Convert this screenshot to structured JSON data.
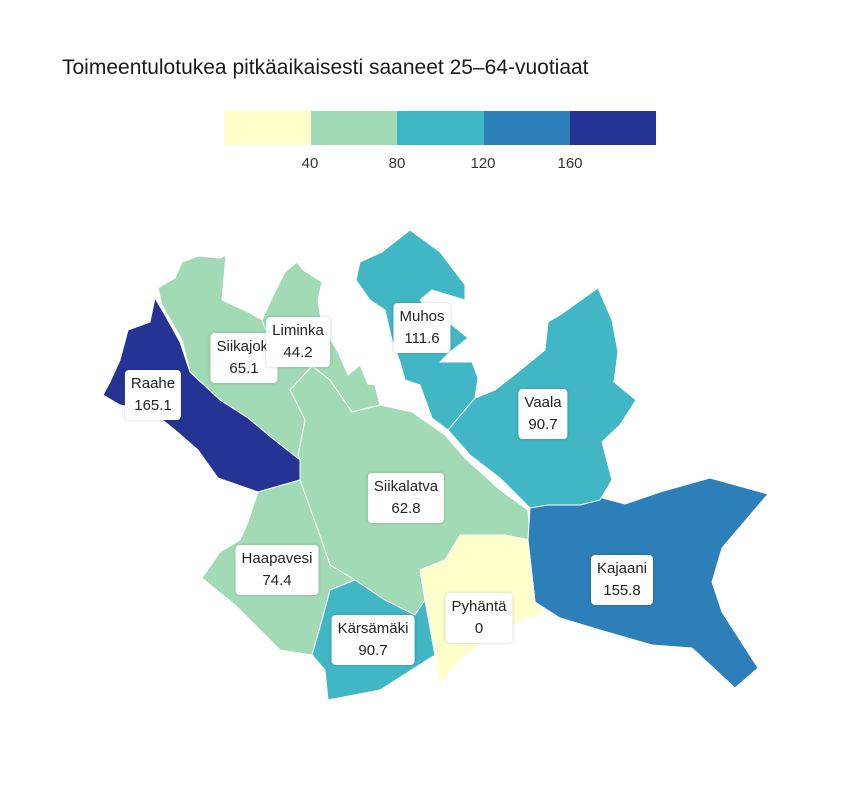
{
  "title": "Toimeentulotukea pitkäaikaisesti saaneet 25–64-vuotiaat",
  "legend": {
    "colors": [
      "#ffffcc",
      "#a1dab4",
      "#41b6c4",
      "#2c7fb8",
      "#253494"
    ],
    "ticks": [
      "40",
      "80",
      "120",
      "160"
    ]
  },
  "regions": [
    {
      "name": "Raahe",
      "value": "165.1",
      "color": "#253494"
    },
    {
      "name": "Siikajoki",
      "value": "65.1",
      "color": "#a1dab4"
    },
    {
      "name": "Liminka",
      "value": "44.2",
      "color": "#a1dab4"
    },
    {
      "name": "Muhos",
      "value": "111.6",
      "color": "#41b6c4"
    },
    {
      "name": "Vaala",
      "value": "90.7",
      "color": "#41b6c4"
    },
    {
      "name": "Siikalatva",
      "value": "62.8",
      "color": "#a1dab4"
    },
    {
      "name": "Kajaani",
      "value": "155.8",
      "color": "#2c7fb8"
    },
    {
      "name": "Haapavesi",
      "value": "74.4",
      "color": "#a1dab4"
    },
    {
      "name": "Kärsämäki",
      "value": "90.7",
      "color": "#41b6c4"
    },
    {
      "name": "Pyhäntä",
      "value": "0",
      "color": "#ffffcc"
    }
  ]
}
